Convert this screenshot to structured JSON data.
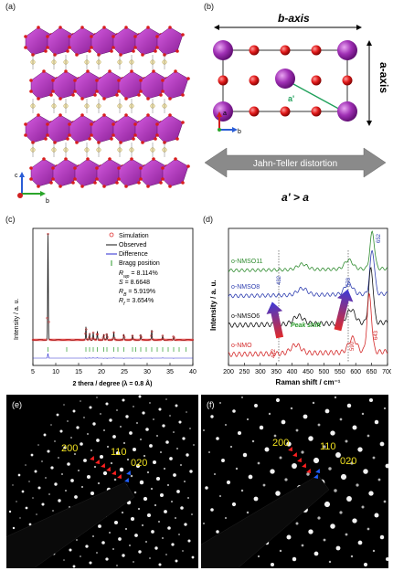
{
  "panels": {
    "a": {
      "label": "(a)",
      "axes": {
        "c": "c",
        "b": "b"
      }
    },
    "b": {
      "label": "(b)",
      "b_axis": "b-axis",
      "a_axis": "a-axis",
      "a_prime": "a'",
      "axis_a": "a",
      "axis_b": "b",
      "arrow_text": "Jahn-Teller distortion",
      "relation": "a' > a"
    },
    "c": {
      "label": "(c)",
      "ylabel": "Intensity / a. u.",
      "xlabel": "2 thera / degree (λ = 0.8  Å)",
      "xticks": [
        "5",
        "10",
        "15",
        "20",
        "25",
        "30",
        "35",
        "40"
      ],
      "legend": [
        "Simulation",
        "Observed",
        "Difference",
        "Bragg position"
      ],
      "stats": [
        {
          "name": "R",
          "sub": "wp",
          "value": " = 8.114%"
        },
        {
          "name": "S",
          "sub": "",
          "value": " = 8.6648"
        },
        {
          "name": "R",
          "sub": "B",
          "value": " = 5.919%"
        },
        {
          "name": "R",
          "sub": "f",
          "value": " = 3.654%"
        }
      ]
    },
    "d": {
      "label": "(d)",
      "ylabel": "Intensity / a. u.",
      "xlabel": "Raman shift / cm⁻¹",
      "xticks": [
        "200",
        "250",
        "300",
        "350",
        "400",
        "450",
        "500",
        "550",
        "600",
        "650",
        "700"
      ],
      "peak_shift": "Peak shift",
      "peak_labels": {
        "p652": "652",
        "p432": "432",
        "p578": "578",
        "p412": "412",
        "p590": "590",
        "p643": "643"
      }
    },
    "e": {
      "label": "(e)",
      "spots": {
        "s200": "200",
        "s110": "110",
        "s020": "020"
      }
    },
    "f": {
      "label": "(f)",
      "spots": {
        "s200": "200",
        "s110": "110",
        "s020": "020"
      }
    }
  },
  "chart_data": [
    {
      "type": "line",
      "panel": "c",
      "xlabel": "2 thera / degree (λ = 0.8  Å)",
      "ylabel": "Intensity / a. u.",
      "xlim": [
        5,
        40
      ],
      "series": [
        {
          "name": "Simulation",
          "color": "#e03030"
        },
        {
          "name": "Observed",
          "color": "#111111"
        },
        {
          "name": "Difference",
          "color": "#2a2ad0"
        },
        {
          "name": "Bragg position",
          "color": "#2a9a2a"
        }
      ],
      "peaks_deg": [
        8.3,
        16.6,
        17.4,
        18.2,
        19.1,
        20.5,
        21.2,
        22.7,
        24.9,
        26.8,
        28.6,
        31.0,
        33.4,
        35.8
      ],
      "peak_heights": [
        1.0,
        0.12,
        0.06,
        0.07,
        0.08,
        0.05,
        0.06,
        0.07,
        0.05,
        0.04,
        0.05,
        0.09,
        0.04,
        0.04
      ]
    },
    {
      "type": "line",
      "panel": "d",
      "xlabel": "Raman shift / cm⁻¹",
      "ylabel": "Intensity / a. u.",
      "xlim": [
        200,
        700
      ],
      "series": [
        {
          "name": "o-NMSO11",
          "color": "#2e8b2e",
          "peaks": [
            432,
            578,
            652
          ]
        },
        {
          "name": "o-NMSO8",
          "color": "#2f3fb0",
          "peaks": [
            432,
            578,
            652
          ]
        },
        {
          "name": "o-NMSO6",
          "color": "#111111",
          "peaks": [
            420,
            585,
            648
          ]
        },
        {
          "name": "o-NMO",
          "color": "#d42a2a",
          "peaks": [
            412,
            590,
            643
          ]
        }
      ]
    }
  ]
}
